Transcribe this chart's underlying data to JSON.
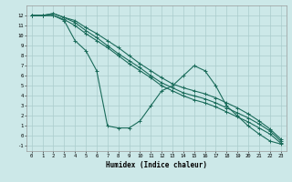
{
  "xlabel": "Humidex (Indice chaleur)",
  "bg_color": "#cce8e8",
  "grid_color": "#aacccc",
  "line_color": "#1a6b5a",
  "xlim": [
    -0.5,
    23.5
  ],
  "ylim": [
    -1.5,
    13
  ],
  "xticks": [
    0,
    1,
    2,
    3,
    4,
    5,
    6,
    7,
    8,
    9,
    10,
    11,
    12,
    13,
    14,
    15,
    16,
    17,
    18,
    19,
    20,
    21,
    22,
    23
  ],
  "yticks": [
    -1,
    0,
    1,
    2,
    3,
    4,
    5,
    6,
    7,
    8,
    9,
    10,
    11,
    12
  ],
  "series": [
    {
      "x": [
        0,
        1,
        2,
        3,
        4,
        5,
        6,
        7,
        8,
        9,
        10,
        11,
        12,
        13,
        14,
        15,
        16,
        17,
        18,
        19,
        20,
        21,
        22,
        23
      ],
      "y": [
        12,
        12,
        12,
        11.5,
        9.5,
        8.5,
        6.5,
        1.0,
        0.8,
        0.8,
        1.5,
        3.0,
        4.5,
        5.0,
        6.0,
        7.0,
        6.5,
        5.0,
        3.0,
        2.0,
        1.0,
        0.2,
        -0.5,
        -0.8
      ]
    },
    {
      "x": [
        0,
        1,
        2,
        3,
        4,
        5,
        6,
        7,
        8,
        9,
        10,
        11,
        12,
        13,
        14,
        15,
        16,
        17,
        18,
        19,
        20,
        21,
        22,
        23
      ],
      "y": [
        12,
        12,
        12.2,
        11.8,
        11.5,
        10.8,
        10.2,
        9.5,
        8.8,
        8.0,
        7.2,
        6.5,
        5.8,
        5.2,
        4.8,
        4.5,
        4.2,
        3.8,
        3.3,
        2.8,
        2.2,
        1.5,
        0.7,
        -0.3
      ]
    },
    {
      "x": [
        0,
        1,
        2,
        3,
        4,
        5,
        6,
        7,
        8,
        9,
        10,
        11,
        12,
        13,
        14,
        15,
        16,
        17,
        18,
        19,
        20,
        21,
        22,
        23
      ],
      "y": [
        12,
        12,
        12.2,
        11.8,
        11.3,
        10.5,
        9.8,
        9.0,
        8.2,
        7.5,
        6.8,
        6.0,
        5.3,
        4.8,
        4.3,
        4.0,
        3.7,
        3.3,
        2.8,
        2.3,
        1.8,
        1.2,
        0.5,
        -0.5
      ]
    },
    {
      "x": [
        0,
        1,
        2,
        3,
        4,
        5,
        6,
        7,
        8,
        9,
        10,
        11,
        12,
        13,
        14,
        15,
        16,
        17,
        18,
        19,
        20,
        21,
        22,
        23
      ],
      "y": [
        12,
        12,
        12.0,
        11.6,
        11.0,
        10.2,
        9.5,
        8.8,
        8.0,
        7.2,
        6.5,
        5.8,
        5.0,
        4.5,
        4.0,
        3.6,
        3.3,
        2.9,
        2.4,
        1.9,
        1.4,
        0.8,
        0.2,
        -0.7
      ]
    }
  ]
}
